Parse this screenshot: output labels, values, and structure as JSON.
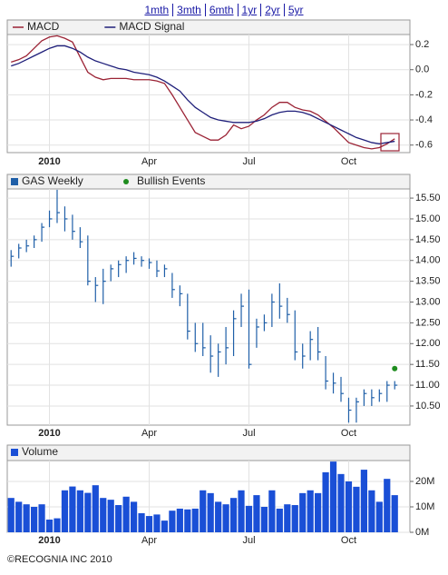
{
  "links": [
    "1mth",
    "3mth",
    "6mth",
    "1yr",
    "2yr",
    "5yr"
  ],
  "footer": "©RECOGNIA INC 2010",
  "chart_data": [
    {
      "type": "line",
      "categories": [
        null,
        null,
        null,
        null,
        null,
        "2010",
        null,
        null,
        null,
        null,
        null,
        null,
        null,
        null,
        null,
        null,
        null,
        null,
        "Apr",
        null,
        null,
        null,
        null,
        null,
        null,
        null,
        null,
        null,
        null,
        null,
        null,
        "Jul",
        null,
        null,
        null,
        null,
        null,
        null,
        null,
        null,
        null,
        null,
        null,
        null,
        "Oct",
        null,
        null,
        null,
        null,
        null,
        null
      ],
      "ylim": [
        -0.66,
        0.28
      ],
      "yticks": [
        0.2,
        {
          "value": 0,
          "label": "0.0"
        },
        -0.2,
        -0.4,
        -0.6
      ],
      "grid": true,
      "series": [
        {
          "name": "MACD",
          "color": "#9b2335",
          "values": [
            0.06,
            0.08,
            0.11,
            0.17,
            0.23,
            0.26,
            0.27,
            0.25,
            0.22,
            0.1,
            -0.02,
            -0.06,
            -0.08,
            -0.07,
            -0.07,
            -0.07,
            -0.08,
            -0.08,
            -0.08,
            -0.09,
            -0.11,
            -0.2,
            -0.3,
            -0.4,
            -0.5,
            -0.53,
            -0.56,
            -0.56,
            -0.52,
            -0.44,
            -0.47,
            -0.45,
            -0.4,
            -0.36,
            -0.3,
            -0.26,
            -0.26,
            -0.3,
            -0.32,
            -0.33,
            -0.36,
            -0.41,
            -0.46,
            -0.52,
            -0.58,
            -0.6,
            -0.62,
            -0.63,
            -0.62,
            -0.59,
            -0.55
          ]
        },
        {
          "name": "MACD Signal",
          "color": "#1f1f7a",
          "values": [
            0.03,
            0.05,
            0.08,
            0.11,
            0.14,
            0.17,
            0.19,
            0.19,
            0.17,
            0.14,
            0.1,
            0.07,
            0.05,
            0.03,
            0.01,
            0.0,
            -0.02,
            -0.03,
            -0.04,
            -0.06,
            -0.09,
            -0.13,
            -0.17,
            -0.24,
            -0.3,
            -0.34,
            -0.38,
            -0.4,
            -0.41,
            -0.42,
            -0.42,
            -0.42,
            -0.41,
            -0.39,
            -0.36,
            -0.34,
            -0.33,
            -0.33,
            -0.34,
            -0.36,
            -0.39,
            -0.42,
            -0.45,
            -0.48,
            -0.51,
            -0.54,
            -0.56,
            -0.58,
            -0.59,
            -0.58,
            -0.57
          ]
        }
      ]
    },
    {
      "type": "ohlc",
      "name": "GAS Weekly",
      "color": "#1f5fa8",
      "categories": [
        null,
        null,
        null,
        null,
        null,
        "2010",
        null,
        null,
        null,
        null,
        null,
        null,
        null,
        null,
        null,
        null,
        null,
        null,
        "Apr",
        null,
        null,
        null,
        null,
        null,
        null,
        null,
        null,
        null,
        null,
        null,
        null,
        "Jul",
        null,
        null,
        null,
        null,
        null,
        null,
        null,
        null,
        null,
        null,
        null,
        null,
        "Oct",
        null,
        null,
        null,
        null,
        null,
        null
      ],
      "ylim": [
        10.04,
        15.72
      ],
      "yticks": [
        {
          "value": 10.5,
          "label": "10.50"
        },
        {
          "value": 11,
          "label": "11.00"
        },
        {
          "value": 11.5,
          "label": "11.50"
        },
        {
          "value": 12,
          "label": "12.00"
        },
        {
          "value": 12.5,
          "label": "12.50"
        },
        {
          "value": 13,
          "label": "13.00"
        },
        {
          "value": 13.5,
          "label": "13.50"
        },
        {
          "value": 14,
          "label": "14.00"
        },
        {
          "value": 14.5,
          "label": "14.50"
        },
        {
          "value": 15,
          "label": "15.00"
        },
        {
          "value": 15.5,
          "label": "15.50"
        }
      ],
      "grid": true,
      "high": [
        14.25,
        14.4,
        14.5,
        14.6,
        14.9,
        15.2,
        15.7,
        15.3,
        15.1,
        14.8,
        14.6,
        13.6,
        13.8,
        13.9,
        14.0,
        14.1,
        14.2,
        14.1,
        14.05,
        14.0,
        13.9,
        13.7,
        13.4,
        13.2,
        12.5,
        12.5,
        12.2,
        12.0,
        12.4,
        12.8,
        13.2,
        13.3,
        12.6,
        12.7,
        13.2,
        13.45,
        13.1,
        12.8,
        12.0,
        12.3,
        12.4,
        11.7,
        11.3,
        11.2,
        10.7,
        10.7,
        10.9,
        10.9,
        10.9,
        11.1,
        11.1
      ],
      "low": [
        13.85,
        14.05,
        14.2,
        14.3,
        14.45,
        14.8,
        14.9,
        14.7,
        14.5,
        14.3,
        13.4,
        13.0,
        12.95,
        13.5,
        13.6,
        13.7,
        13.9,
        13.85,
        13.8,
        13.6,
        13.6,
        13.1,
        12.9,
        12.1,
        11.8,
        11.7,
        11.3,
        11.2,
        11.5,
        11.7,
        12.4,
        11.4,
        11.9,
        12.3,
        12.4,
        12.6,
        12.5,
        11.6,
        11.4,
        11.6,
        11.6,
        10.9,
        10.8,
        10.6,
        10.1,
        10.1,
        10.5,
        10.5,
        10.6,
        10.6,
        10.9
      ],
      "close": [
        14.1,
        14.3,
        14.35,
        14.5,
        14.8,
        15.0,
        15.15,
        15.0,
        14.7,
        14.45,
        13.5,
        13.4,
        13.5,
        13.8,
        13.9,
        14.0,
        14.05,
        14.0,
        13.95,
        13.75,
        13.8,
        13.3,
        13.2,
        12.3,
        12.0,
        11.9,
        11.7,
        11.8,
        11.9,
        12.6,
        12.9,
        11.5,
        12.4,
        12.5,
        13.0,
        12.9,
        12.7,
        11.8,
        11.7,
        12.1,
        11.8,
        11.1,
        11.05,
        10.8,
        10.4,
        10.6,
        10.8,
        10.7,
        10.8,
        11.0,
        11.0
      ],
      "events": {
        "name": "Bullish Events",
        "color": "#1e8c1e",
        "values": [
          null,
          null,
          null,
          null,
          null,
          null,
          null,
          null,
          null,
          null,
          null,
          null,
          null,
          null,
          null,
          null,
          null,
          null,
          null,
          null,
          null,
          null,
          null,
          null,
          null,
          null,
          null,
          null,
          null,
          null,
          null,
          null,
          null,
          null,
          null,
          null,
          null,
          null,
          null,
          null,
          null,
          null,
          null,
          null,
          null,
          null,
          null,
          null,
          null,
          null,
          11.4
        ]
      }
    },
    {
      "type": "bar",
      "name": "Volume",
      "color": "#1a4fd6",
      "categories": [
        null,
        null,
        null,
        null,
        null,
        "2010",
        null,
        null,
        null,
        null,
        null,
        null,
        null,
        null,
        null,
        null,
        null,
        null,
        "Apr",
        null,
        null,
        null,
        null,
        null,
        null,
        null,
        null,
        null,
        null,
        null,
        null,
        "Jul",
        null,
        null,
        null,
        null,
        null,
        null,
        null,
        null,
        null,
        null,
        null,
        null,
        "Oct",
        null,
        null,
        null,
        null,
        null,
        null
      ],
      "ylim": [
        0,
        28200000
      ],
      "yticks": [
        {
          "value": 0,
          "label": "0M"
        },
        {
          "value": 10000000,
          "label": "10M"
        },
        {
          "value": 20000000,
          "label": "20M"
        }
      ],
      "grid": true,
      "values": [
        13500000,
        12000000,
        11000000,
        10000000,
        11000000,
        5000000,
        5500000,
        16500000,
        18000000,
        16500000,
        15500000,
        18500000,
        13500000,
        12800000,
        10700000,
        14000000,
        12000000,
        7500000,
        6400000,
        7000000,
        4600000,
        8500000,
        9300000,
        9000000,
        9300000,
        16500000,
        15400000,
        12000000,
        11000000,
        13500000,
        16500000,
        10400000,
        14600000,
        10000000,
        16500000,
        9300000,
        11000000,
        10700000,
        15400000,
        16500000,
        15400000,
        23600000,
        27800000,
        22900000,
        20000000,
        17900000,
        24600000,
        16500000,
        12000000,
        21000000,
        14600000
      ]
    }
  ]
}
